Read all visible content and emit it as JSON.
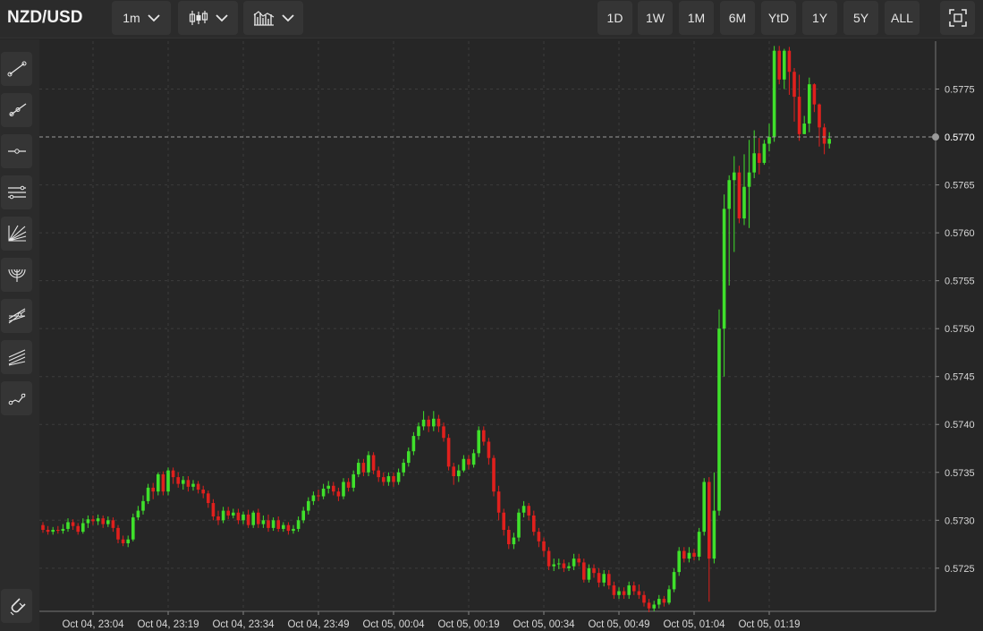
{
  "header": {
    "symbol": "NZD/USD",
    "interval": "1m",
    "chart_type_icon": "candlestick-icon",
    "indicator_icon": "indicators-icon",
    "ranges": [
      "1D",
      "1W",
      "1M",
      "6M",
      "YtD",
      "1Y",
      "5Y",
      "ALL"
    ],
    "fullscreen_icon": "fullscreen-icon"
  },
  "sidebar": {
    "tools": [
      "trend-line-icon",
      "ray-icon",
      "horizontal-line-icon",
      "parallel-channel-icon",
      "fan-icon",
      "arc-icon",
      "pitchfork-icon",
      "multi-channel-icon",
      "polyline-icon"
    ],
    "bottom_tool": "magnet-icon"
  },
  "colors": {
    "up": "#3fe02b",
    "down": "#e0201d",
    "background": "#262626",
    "grid": "#3c3c3c",
    "price_line": "#9a9a9a"
  },
  "chart_data": {
    "type": "candlestick",
    "title": "NZD/USD",
    "interval": "1m",
    "x_ticks": [
      "Oct 04, 23:04",
      "Oct 04, 23:19",
      "Oct 04, 23:34",
      "Oct 04, 23:49",
      "Oct 05, 00:04",
      "Oct 05, 00:19",
      "Oct 05, 00:34",
      "Oct 05, 00:49",
      "Oct 05, 01:04",
      "Oct 05, 01:19"
    ],
    "y_ticks": [
      "0.5725",
      "0.5730",
      "0.5735",
      "0.5740",
      "0.5745",
      "0.5750",
      "0.5755",
      "0.5760",
      "0.5765",
      "0.5770",
      "0.5775"
    ],
    "ylim": [
      0.57205,
      0.578
    ],
    "current_price": "0.5770",
    "grid": true,
    "candles": [
      [
        0.57295,
        0.5729,
        0.57298,
        0.57287
      ],
      [
        0.5729,
        0.57288,
        0.57294,
        0.57285
      ],
      [
        0.57288,
        0.5729,
        0.57293,
        0.57285
      ],
      [
        0.5729,
        0.57289,
        0.57294,
        0.57286
      ],
      [
        0.57289,
        0.57291,
        0.57296,
        0.57286
      ],
      [
        0.57291,
        0.57298,
        0.57302,
        0.57288
      ],
      [
        0.57298,
        0.57294,
        0.57301,
        0.5729
      ],
      [
        0.57294,
        0.57288,
        0.57297,
        0.57285
      ],
      [
        0.57288,
        0.57297,
        0.57302,
        0.57286
      ],
      [
        0.57297,
        0.57301,
        0.57305,
        0.57292
      ],
      [
        0.57301,
        0.57299,
        0.57305,
        0.57295
      ],
      [
        0.57299,
        0.57302,
        0.57306,
        0.57295
      ],
      [
        0.57302,
        0.57296,
        0.57305,
        0.57292
      ],
      [
        0.57296,
        0.573,
        0.57304,
        0.57293
      ],
      [
        0.573,
        0.57292,
        0.57303,
        0.57288
      ],
      [
        0.57292,
        0.5728,
        0.57295,
        0.57276
      ],
      [
        0.5728,
        0.57276,
        0.57284,
        0.57273
      ],
      [
        0.57276,
        0.5728,
        0.57284,
        0.57272
      ],
      [
        0.5728,
        0.57303,
        0.57307,
        0.57278
      ],
      [
        0.57303,
        0.5731,
        0.57315,
        0.573
      ],
      [
        0.5731,
        0.5732,
        0.57326,
        0.57306
      ],
      [
        0.5732,
        0.57334,
        0.57338,
        0.57317
      ],
      [
        0.57334,
        0.5733,
        0.57339,
        0.57322
      ],
      [
        0.5733,
        0.57348,
        0.5735,
        0.57326
      ],
      [
        0.57348,
        0.5733,
        0.57351,
        0.57326
      ],
      [
        0.5733,
        0.57352,
        0.57355,
        0.57326
      ],
      [
        0.57352,
        0.57345,
        0.57355,
        0.57338
      ],
      [
        0.57345,
        0.57338,
        0.5735,
        0.57334
      ],
      [
        0.57338,
        0.57342,
        0.57346,
        0.57332
      ],
      [
        0.57342,
        0.57335,
        0.57346,
        0.5733
      ],
      [
        0.57335,
        0.57338,
        0.57342,
        0.57331
      ],
      [
        0.57338,
        0.57332,
        0.57341,
        0.57328
      ],
      [
        0.57332,
        0.57328,
        0.57336,
        0.57323
      ],
      [
        0.57328,
        0.57318,
        0.57331,
        0.57313
      ],
      [
        0.57318,
        0.57304,
        0.57322,
        0.573
      ],
      [
        0.57304,
        0.573,
        0.5731,
        0.57295
      ],
      [
        0.573,
        0.5731,
        0.57314,
        0.57297
      ],
      [
        0.5731,
        0.57305,
        0.57314,
        0.57301
      ],
      [
        0.57305,
        0.57308,
        0.57312,
        0.57302
      ],
      [
        0.57308,
        0.573,
        0.57312,
        0.57296
      ],
      [
        0.573,
        0.57306,
        0.57309,
        0.57296
      ],
      [
        0.57306,
        0.57295,
        0.57311,
        0.57292
      ],
      [
        0.57295,
        0.57308,
        0.5731,
        0.57292
      ],
      [
        0.57308,
        0.57296,
        0.57312,
        0.57292
      ],
      [
        0.57296,
        0.573,
        0.57305,
        0.57292
      ],
      [
        0.573,
        0.57292,
        0.57306,
        0.57288
      ],
      [
        0.57292,
        0.573,
        0.57303,
        0.57289
      ],
      [
        0.573,
        0.57291,
        0.57304,
        0.57288
      ],
      [
        0.57291,
        0.57295,
        0.57298,
        0.57288
      ],
      [
        0.57295,
        0.57289,
        0.57298,
        0.57285
      ],
      [
        0.57289,
        0.57291,
        0.57295,
        0.57286
      ],
      [
        0.57291,
        0.573,
        0.57304,
        0.57288
      ],
      [
        0.573,
        0.5731,
        0.57314,
        0.57297
      ],
      [
        0.5731,
        0.5732,
        0.57324,
        0.57306
      ],
      [
        0.5732,
        0.57326,
        0.5733,
        0.57316
      ],
      [
        0.57326,
        0.57325,
        0.57332,
        0.5732
      ],
      [
        0.57325,
        0.57333,
        0.57338,
        0.57322
      ],
      [
        0.57333,
        0.57336,
        0.57341,
        0.57328
      ],
      [
        0.57336,
        0.5733,
        0.5734,
        0.57326
      ],
      [
        0.5733,
        0.57325,
        0.57334,
        0.5732
      ],
      [
        0.57325,
        0.5734,
        0.57344,
        0.57322
      ],
      [
        0.5734,
        0.57334,
        0.57344,
        0.5733
      ],
      [
        0.57334,
        0.57348,
        0.57352,
        0.5733
      ],
      [
        0.57348,
        0.5736,
        0.57364,
        0.57345
      ],
      [
        0.5736,
        0.5735,
        0.57364,
        0.57346
      ],
      [
        0.5735,
        0.57368,
        0.57372,
        0.57346
      ],
      [
        0.57368,
        0.57352,
        0.57371,
        0.57348
      ],
      [
        0.57352,
        0.57345,
        0.57356,
        0.5734
      ],
      [
        0.57345,
        0.5734,
        0.5735,
        0.57336
      ],
      [
        0.5734,
        0.57346,
        0.5735,
        0.57336
      ],
      [
        0.57346,
        0.5734,
        0.5735,
        0.57335
      ],
      [
        0.5734,
        0.5735,
        0.57354,
        0.57337
      ],
      [
        0.5735,
        0.5736,
        0.57364,
        0.57346
      ],
      [
        0.5736,
        0.57372,
        0.57376,
        0.57356
      ],
      [
        0.57372,
        0.57388,
        0.57392,
        0.57368
      ],
      [
        0.57388,
        0.57398,
        0.57402,
        0.57384
      ],
      [
        0.57398,
        0.57405,
        0.57414,
        0.57394
      ],
      [
        0.57405,
        0.57398,
        0.57409,
        0.57392
      ],
      [
        0.57398,
        0.57406,
        0.57414,
        0.57393
      ],
      [
        0.57406,
        0.57398,
        0.5741,
        0.57392
      ],
      [
        0.57398,
        0.57386,
        0.57402,
        0.57382
      ],
      [
        0.57386,
        0.57356,
        0.5739,
        0.57352
      ],
      [
        0.57356,
        0.57346,
        0.5736,
        0.57337
      ],
      [
        0.57346,
        0.57352,
        0.57358,
        0.5734
      ],
      [
        0.57352,
        0.57364,
        0.57368,
        0.5735
      ],
      [
        0.57364,
        0.57358,
        0.57368,
        0.57353
      ],
      [
        0.57358,
        0.5737,
        0.57374,
        0.57355
      ],
      [
        0.5737,
        0.57394,
        0.57398,
        0.57366
      ],
      [
        0.57394,
        0.57382,
        0.57398,
        0.57378
      ],
      [
        0.57382,
        0.57365,
        0.57386,
        0.57358
      ],
      [
        0.57365,
        0.5733,
        0.57368,
        0.57325
      ],
      [
        0.5733,
        0.57308,
        0.57336,
        0.573
      ],
      [
        0.57308,
        0.5729,
        0.57312,
        0.57284
      ],
      [
        0.5729,
        0.57275,
        0.57294,
        0.5727
      ],
      [
        0.57275,
        0.57282,
        0.57287,
        0.5727
      ],
      [
        0.57282,
        0.57308,
        0.57312,
        0.57278
      ],
      [
        0.57308,
        0.57315,
        0.5732,
        0.57303
      ],
      [
        0.57315,
        0.57305,
        0.57318,
        0.573
      ],
      [
        0.57305,
        0.57288,
        0.5731,
        0.57284
      ],
      [
        0.57288,
        0.57278,
        0.57292,
        0.57272
      ],
      [
        0.57278,
        0.57268,
        0.57282,
        0.57262
      ],
      [
        0.57268,
        0.57252,
        0.57272,
        0.57248
      ],
      [
        0.57252,
        0.57254,
        0.5726,
        0.57247
      ],
      [
        0.57254,
        0.57255,
        0.5726,
        0.57249
      ],
      [
        0.57255,
        0.5725,
        0.57259,
        0.57246
      ],
      [
        0.5725,
        0.57252,
        0.57256,
        0.57247
      ],
      [
        0.57252,
        0.5726,
        0.57265,
        0.57248
      ],
      [
        0.5726,
        0.57256,
        0.57265,
        0.57252
      ],
      [
        0.57256,
        0.57238,
        0.5726,
        0.57235
      ],
      [
        0.57238,
        0.5725,
        0.57254,
        0.57235
      ],
      [
        0.5725,
        0.57245,
        0.57254,
        0.5724
      ],
      [
        0.57245,
        0.57235,
        0.5725,
        0.5723
      ],
      [
        0.57235,
        0.57244,
        0.57248,
        0.57231
      ],
      [
        0.57244,
        0.57232,
        0.57248,
        0.57228
      ],
      [
        0.57232,
        0.57222,
        0.57236,
        0.57218
      ],
      [
        0.57222,
        0.57226,
        0.5723,
        0.57218
      ],
      [
        0.57226,
        0.57222,
        0.5723,
        0.57218
      ],
      [
        0.57222,
        0.57232,
        0.57236,
        0.57218
      ],
      [
        0.57232,
        0.57226,
        0.57236,
        0.57222
      ],
      [
        0.57226,
        0.57222,
        0.57233,
        0.57218
      ],
      [
        0.57222,
        0.57214,
        0.57226,
        0.5721
      ],
      [
        0.57214,
        0.57208,
        0.57218,
        0.57204
      ],
      [
        0.57208,
        0.57212,
        0.57216,
        0.57205
      ],
      [
        0.57212,
        0.57218,
        0.57222,
        0.57208
      ],
      [
        0.57218,
        0.57214,
        0.57221,
        0.5721
      ],
      [
        0.57214,
        0.57228,
        0.57232,
        0.57212
      ],
      [
        0.57228,
        0.57246,
        0.5725,
        0.57225
      ],
      [
        0.57246,
        0.57268,
        0.57272,
        0.57242
      ],
      [
        0.57268,
        0.5726,
        0.57272,
        0.57256
      ],
      [
        0.5726,
        0.57266,
        0.57272,
        0.57256
      ],
      [
        0.57266,
        0.57262,
        0.5727,
        0.57258
      ],
      [
        0.57262,
        0.57288,
        0.57292,
        0.57258
      ],
      [
        0.57288,
        0.5734,
        0.57344,
        0.57284
      ],
      [
        0.5734,
        0.5726,
        0.57345,
        0.57215
      ],
      [
        0.5726,
        0.5731,
        0.5735,
        0.57255
      ],
      [
        0.5731,
        0.575,
        0.5752,
        0.57305
      ],
      [
        0.575,
        0.57625,
        0.5764,
        0.5745
      ],
      [
        0.57625,
        0.57655,
        0.5766,
        0.57545
      ],
      [
        0.57655,
        0.57663,
        0.5768,
        0.5758
      ],
      [
        0.57663,
        0.57615,
        0.5767,
        0.5761
      ],
      [
        0.57615,
        0.57648,
        0.57682,
        0.57608
      ],
      [
        0.57648,
        0.57663,
        0.57697,
        0.57605
      ],
      [
        0.57663,
        0.57683,
        0.57707,
        0.57657
      ],
      [
        0.57683,
        0.57673,
        0.57699,
        0.57661
      ],
      [
        0.57673,
        0.57693,
        0.57697,
        0.57671
      ],
      [
        0.57693,
        0.577,
        0.57714,
        0.57685
      ],
      [
        0.577,
        0.5779,
        0.57795,
        0.57695
      ],
      [
        0.5779,
        0.5776,
        0.57795,
        0.57755
      ],
      [
        0.5776,
        0.5779,
        0.57792,
        0.5775
      ],
      [
        0.5779,
        0.57768,
        0.57794,
        0.57744
      ],
      [
        0.57768,
        0.57742,
        0.57772,
        0.57716
      ],
      [
        0.57742,
        0.57703,
        0.57765,
        0.57696
      ],
      [
        0.57703,
        0.57714,
        0.57722,
        0.57703
      ],
      [
        0.57714,
        0.57755,
        0.57762,
        0.57705
      ],
      [
        0.57755,
        0.57734,
        0.57756,
        0.57726
      ],
      [
        0.57734,
        0.5771,
        0.57735,
        0.5769
      ],
      [
        0.5771,
        0.57693,
        0.57714,
        0.57682
      ],
      [
        0.57693,
        0.57698,
        0.57705,
        0.57688
      ]
    ]
  }
}
